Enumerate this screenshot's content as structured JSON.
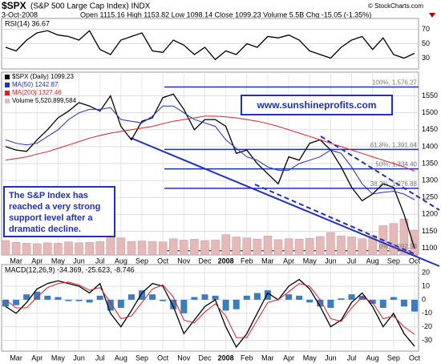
{
  "header": {
    "symbol": "$SPX",
    "name": "(S&P 500 Large Cap Index) INDX",
    "date": "3-Oct-2008",
    "quote": "Open 1115.16 High 1153.82 Low 1098.14 Close 1099.23 Volume 5.5B Chg -15.05 (-1.35%)",
    "credit": "© StockCharts.com"
  },
  "chart_data": [
    {
      "type": "line",
      "title": "RSI(14) 36.67",
      "ylim": [
        15,
        85
      ],
      "yticks": [
        30,
        50,
        70
      ],
      "grid": true,
      "series": [
        {
          "name": "RSI(14)",
          "color": "#000000",
          "values": [
            45,
            40,
            55,
            65,
            68,
            62,
            60,
            55,
            68,
            42,
            35,
            55,
            60,
            65,
            40,
            38,
            55,
            48,
            35,
            45,
            28,
            40,
            35,
            50,
            45,
            60,
            58,
            62,
            55,
            40,
            35,
            30,
            45,
            55,
            60,
            42,
            58,
            35,
            30,
            36.67
          ]
        }
      ]
    },
    {
      "type": "line",
      "ylim": [
        1080,
        1620
      ],
      "yticks": [
        1100,
        1150,
        1200,
        1250,
        1300,
        1350,
        1400,
        1450,
        1500,
        1550
      ],
      "grid": true,
      "categories": [
        null,
        "Mar",
        null,
        "Apr",
        null,
        "May",
        null,
        "Jun",
        null,
        "Jul",
        null,
        "Aug",
        null,
        "Sep",
        null,
        "Oct",
        null,
        "Nov",
        null,
        "Dec",
        null,
        "2008",
        null,
        "Feb",
        null,
        "Mar",
        null,
        "Apr",
        null,
        "May",
        null,
        "Jun",
        null,
        "Jul",
        null,
        "Aug",
        null,
        "Sep",
        null,
        "Oct"
      ],
      "series": [
        {
          "name": "$SPX (Daily) 1099.23",
          "color": "#000000",
          "values": [
            1400,
            1390,
            1386,
            1420,
            1450,
            1485,
            1505,
            1530,
            1520,
            1505,
            1550,
            1460,
            1420,
            1475,
            1485,
            1545,
            1555,
            1510,
            1450,
            1480,
            1480,
            1460,
            1380,
            1390,
            1350,
            1320,
            1290,
            1370,
            1360,
            1410,
            1420,
            1390,
            1340,
            1280,
            1240,
            1260,
            1290,
            1280,
            1200,
            1099.23
          ]
        },
        {
          "name": "MA(50) 1242.87",
          "color": "#2030c0",
          "values": [
            1420,
            1410,
            1405,
            1410,
            1430,
            1450,
            1480,
            1500,
            1510,
            1510,
            1515,
            1480,
            1475,
            1470,
            1490,
            1520,
            1520,
            1500,
            1480,
            1470,
            1460,
            1420,
            1395,
            1370,
            1360,
            1340,
            1330,
            1330,
            1350,
            1360,
            1370,
            1390,
            1380,
            1340,
            1290,
            1260,
            1265,
            1268,
            1260,
            1242.87
          ]
        },
        {
          "name": "MA(200) 1327.46",
          "color": "#e02020",
          "values": [
            1360,
            1365,
            1370,
            1378,
            1385,
            1395,
            1405,
            1415,
            1425,
            1433,
            1440,
            1445,
            1450,
            1455,
            1460,
            1468,
            1475,
            1480,
            1485,
            1490,
            1490,
            1488,
            1485,
            1480,
            1475,
            1468,
            1460,
            1450,
            1440,
            1430,
            1420,
            1410,
            1400,
            1390,
            1380,
            1370,
            1360,
            1350,
            1340,
            1327.46
          ]
        },
        {
          "name": "Volume 5,520,899,584",
          "color": "#e6b8b8",
          "type": "bar",
          "values": [
            3200000000,
            2800000000,
            2600000000,
            2500000000,
            2700000000,
            2600000000,
            2900000000,
            2700000000,
            2800000000,
            3000000000,
            4200000000,
            3800000000,
            3000000000,
            3100000000,
            3000000000,
            2900000000,
            3600000000,
            3300000000,
            3500000000,
            3200000000,
            3300000000,
            4500000000,
            4000000000,
            3800000000,
            3500000000,
            4200000000,
            3400000000,
            3600000000,
            3500000000,
            3700000000,
            4100000000,
            5000000000,
            4200000000,
            4000000000,
            3600000000,
            4300000000,
            6500000000,
            7000000000,
            8000000000,
            5520899584
          ]
        }
      ],
      "annotations": [
        {
          "label": "100%, 1,576.27",
          "value": 1576.27,
          "color": "#2030c0"
        },
        {
          "label": "61.8%, 1,391.64",
          "value": 1391.64,
          "color": "#2030c0"
        },
        {
          "label": "50%, 1,334.40",
          "value": 1334.4,
          "color": "#2030c0"
        },
        {
          "label": "38.2%, 1,276.88",
          "value": 1276.88,
          "color": "#2030c0"
        },
        {
          "label": "0%, 1,092.53",
          "value": 1092.53,
          "color": "#555555"
        }
      ],
      "notes": [
        "www.sunshineprofits.com",
        "The S&P Index has reached a very strong support level after a dramatic decline."
      ]
    },
    {
      "type": "line",
      "title": "MACD(12,26,9) -34.369, -25.623, -8.746",
      "ylim": [
        -38,
        26
      ],
      "yticks": [
        -30,
        -20,
        -10,
        0,
        10,
        20
      ],
      "grid": true,
      "categories": [
        null,
        "Mar",
        null,
        "Apr",
        null,
        "May",
        null,
        "Jun",
        null,
        "Jul",
        null,
        "Aug",
        null,
        "Sep",
        null,
        "Oct",
        null,
        "Nov",
        null,
        "Dec",
        null,
        "2008",
        null,
        "Feb",
        null,
        "Mar",
        null,
        "Apr",
        null,
        "May",
        null,
        "Jun",
        null,
        "Jul",
        null,
        "Aug",
        null,
        "Sep",
        null,
        "Oct"
      ],
      "series": [
        {
          "name": "MACD",
          "color": "#000000",
          "values": [
            -5,
            -10,
            -2,
            8,
            12,
            14,
            12,
            10,
            5,
            12,
            -10,
            -20,
            -8,
            5,
            12,
            10,
            -5,
            -25,
            -15,
            -5,
            0,
            -20,
            -35,
            -25,
            -10,
            5,
            0,
            10,
            15,
            8,
            -5,
            -20,
            -15,
            -2,
            5,
            -5,
            -20,
            -10,
            -25,
            -34.369
          ]
        },
        {
          "name": "Signal",
          "color": "#e02020",
          "values": [
            0,
            -6,
            -6,
            2,
            9,
            12,
            13,
            11,
            7,
            9,
            -2,
            -14,
            -12,
            -2,
            8,
            11,
            2,
            -15,
            -17,
            -9,
            -3,
            -12,
            -28,
            -28,
            -15,
            -2,
            0,
            6,
            12,
            10,
            0,
            -14,
            -16,
            -6,
            2,
            -2,
            -14,
            -12,
            -20,
            -25.623
          ]
        },
        {
          "name": "Histogram",
          "color": "#3a7cc0",
          "type": "bar",
          "values": [
            -5,
            -4,
            4,
            6,
            3,
            2,
            -1,
            -1,
            -2,
            3,
            -8,
            -6,
            4,
            7,
            4,
            -1,
            -7,
            -10,
            2,
            4,
            3,
            -8,
            -7,
            3,
            5,
            7,
            0,
            4,
            3,
            -2,
            -5,
            -6,
            1,
            4,
            3,
            -3,
            -6,
            2,
            -5,
            -8.746
          ]
        }
      ]
    }
  ]
}
